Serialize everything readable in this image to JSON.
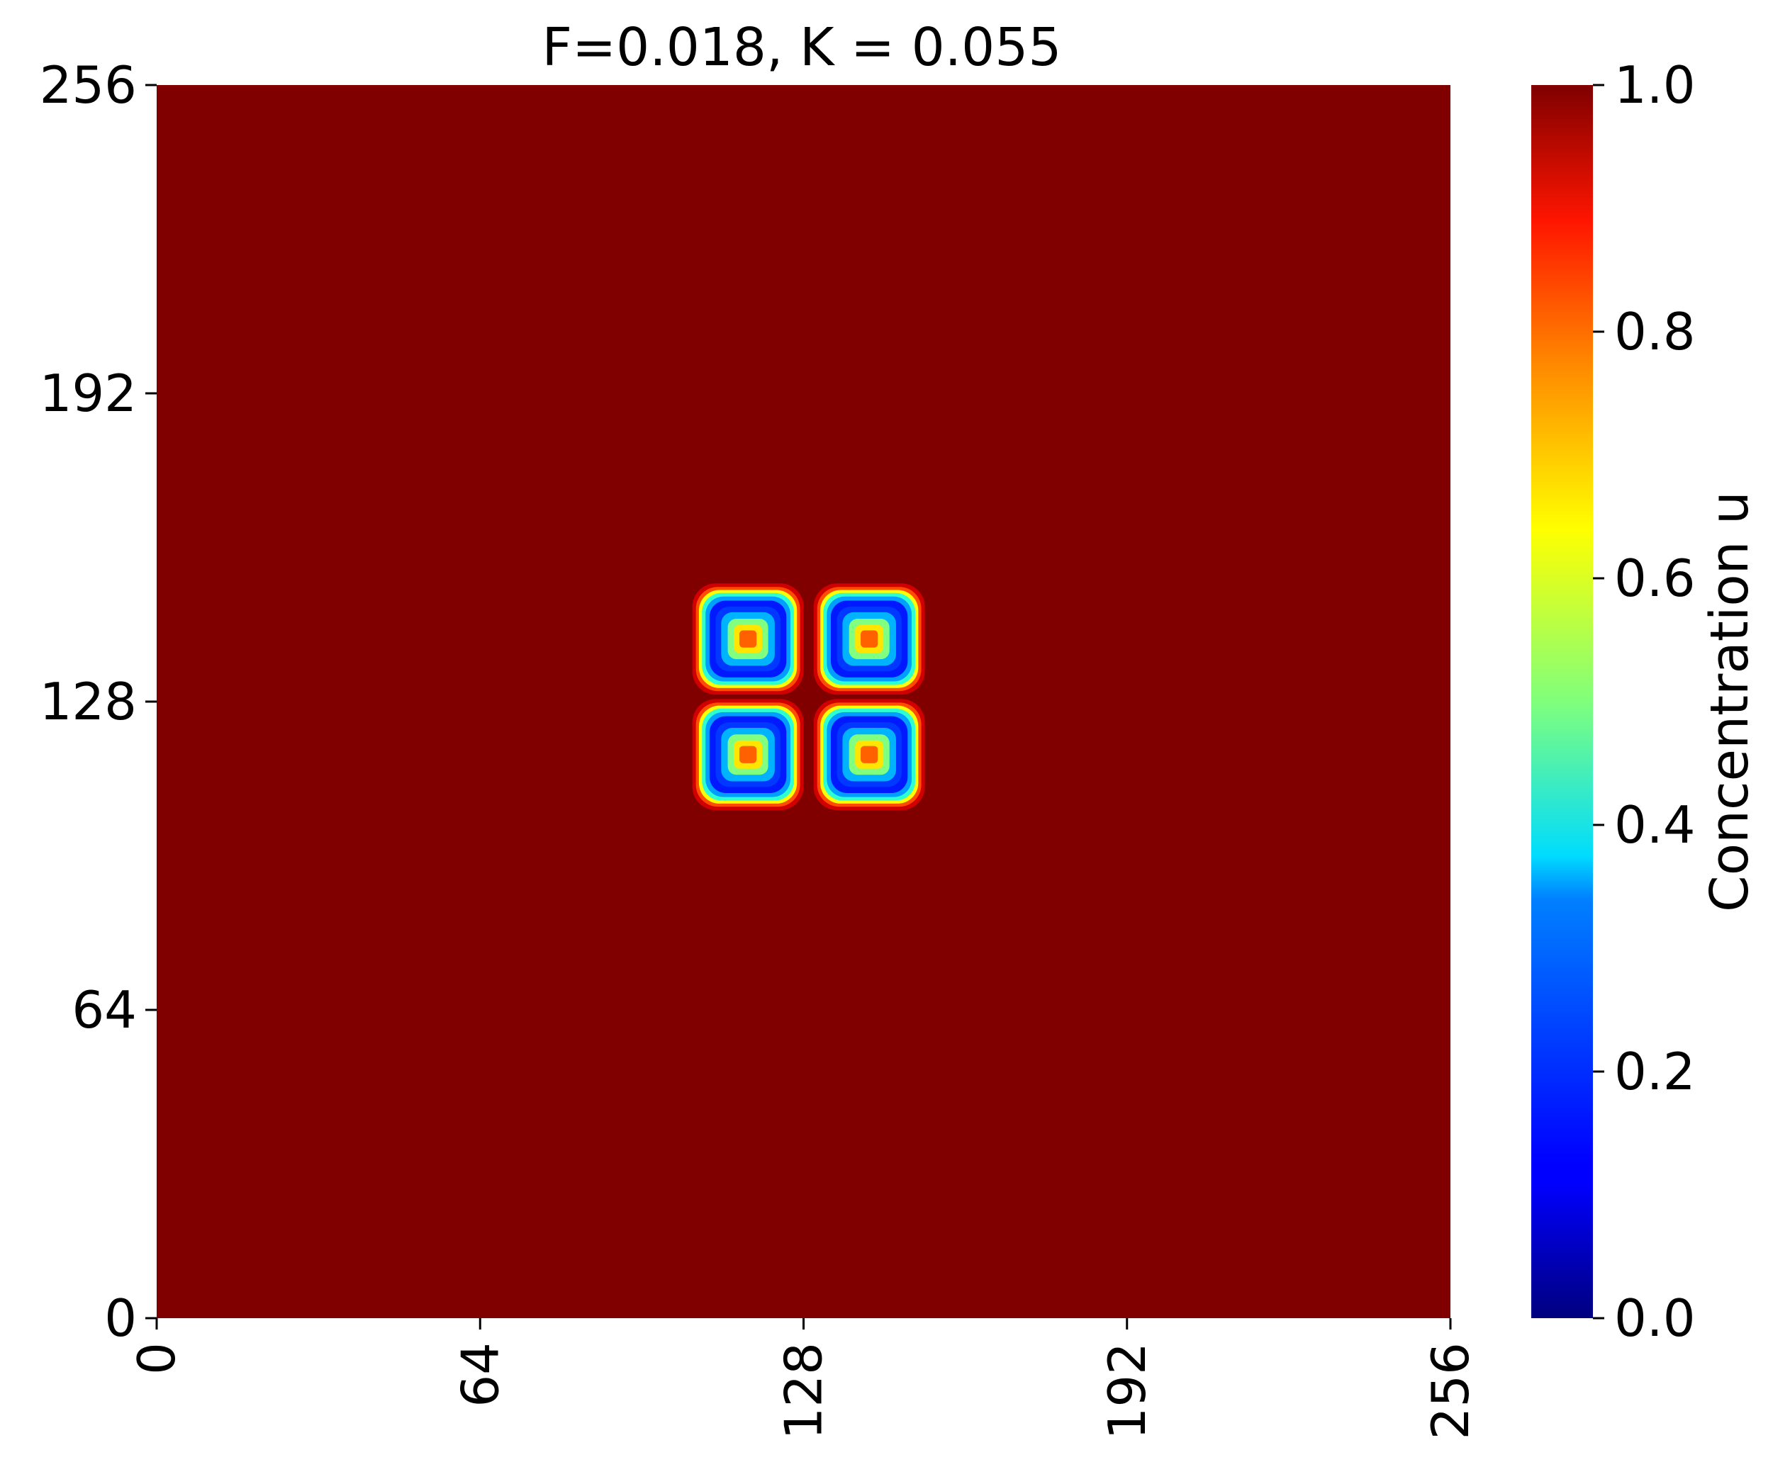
{
  "chart_data": {
    "type": "heatmap",
    "title": "F=0.018, K = 0.055",
    "xlabel": "",
    "ylabel": "",
    "xlim": [
      0,
      256
    ],
    "ylim": [
      0,
      256
    ],
    "x_ticks": [
      "0",
      "64",
      "128",
      "192",
      "256"
    ],
    "y_ticks": [
      "0",
      "64",
      "128",
      "192",
      "256"
    ],
    "background_value": 1.0,
    "spots": [
      {
        "x": 117,
        "y": 141,
        "rim_value": 0.15,
        "center_value": 0.78
      },
      {
        "x": 141,
        "y": 141,
        "rim_value": 0.15,
        "center_value": 0.78
      },
      {
        "x": 117,
        "y": 117,
        "rim_value": 0.15,
        "center_value": 0.78
      },
      {
        "x": 141,
        "y": 117,
        "rim_value": 0.15,
        "center_value": 0.78
      }
    ],
    "colormap": "jet",
    "colorbar": {
      "label": "Concentration u",
      "range": [
        0.0,
        1.0
      ],
      "ticks": [
        "0.0",
        "0.2",
        "0.4",
        "0.6",
        "0.8",
        "1.0"
      ]
    },
    "grid": false,
    "legend": "none"
  }
}
